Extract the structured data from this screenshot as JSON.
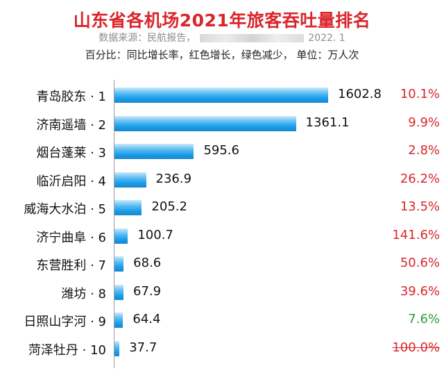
{
  "header": {
    "title": "山东省各机场2021年旅客吞吐量排名",
    "source_prefix": "数据来源：民航报告，",
    "source_date": "2022. 1",
    "note": "百分比：同比增长率，红色增长，绿色减少，  单位：万人次"
  },
  "colors": {
    "title": "#d9252b",
    "growth": "#d9252b",
    "decrease": "#2a9d3c",
    "bar": "#1b9ee8"
  },
  "chart_data": {
    "type": "bar",
    "orientation": "horizontal",
    "title": "山东省各机场2021年旅客吞吐量排名",
    "unit": "万人次",
    "categories": [
      "青岛胶东 · 1",
      "济南遥墙 · 2",
      "烟台蓬莱 · 3",
      "临沂启阳 · 4",
      "威海大水泊 · 5",
      "济宁曲阜 · 6",
      "东营胜利 · 7",
      "潍坊 · 8",
      "日照山字河 · 9",
      "菏泽牡丹 · 10"
    ],
    "values": [
      1602.8,
      1361.1,
      595.6,
      236.9,
      205.2,
      100.7,
      68.6,
      67.9,
      64.4,
      37.7
    ],
    "value_labels": [
      "1602.8",
      "1361.1",
      "595.6",
      "236.9",
      "205.2",
      "100.7",
      "68.6",
      "67.9",
      "64.4",
      "37.7"
    ],
    "growth_labels": [
      "10.1%",
      "9.9%",
      "2.8%",
      "26.2%",
      "13.5%",
      "141.6%",
      "50.6%",
      "39.6%",
      "7.6%",
      "100.0%"
    ],
    "growth_direction": [
      "up",
      "up",
      "up",
      "up",
      "up",
      "up",
      "up",
      "up",
      "down",
      "up"
    ],
    "growth_strikethrough": [
      false,
      false,
      false,
      false,
      false,
      false,
      false,
      false,
      false,
      true
    ],
    "xlim": [
      0,
      1602.8
    ],
    "grid": false,
    "legend": "none"
  }
}
